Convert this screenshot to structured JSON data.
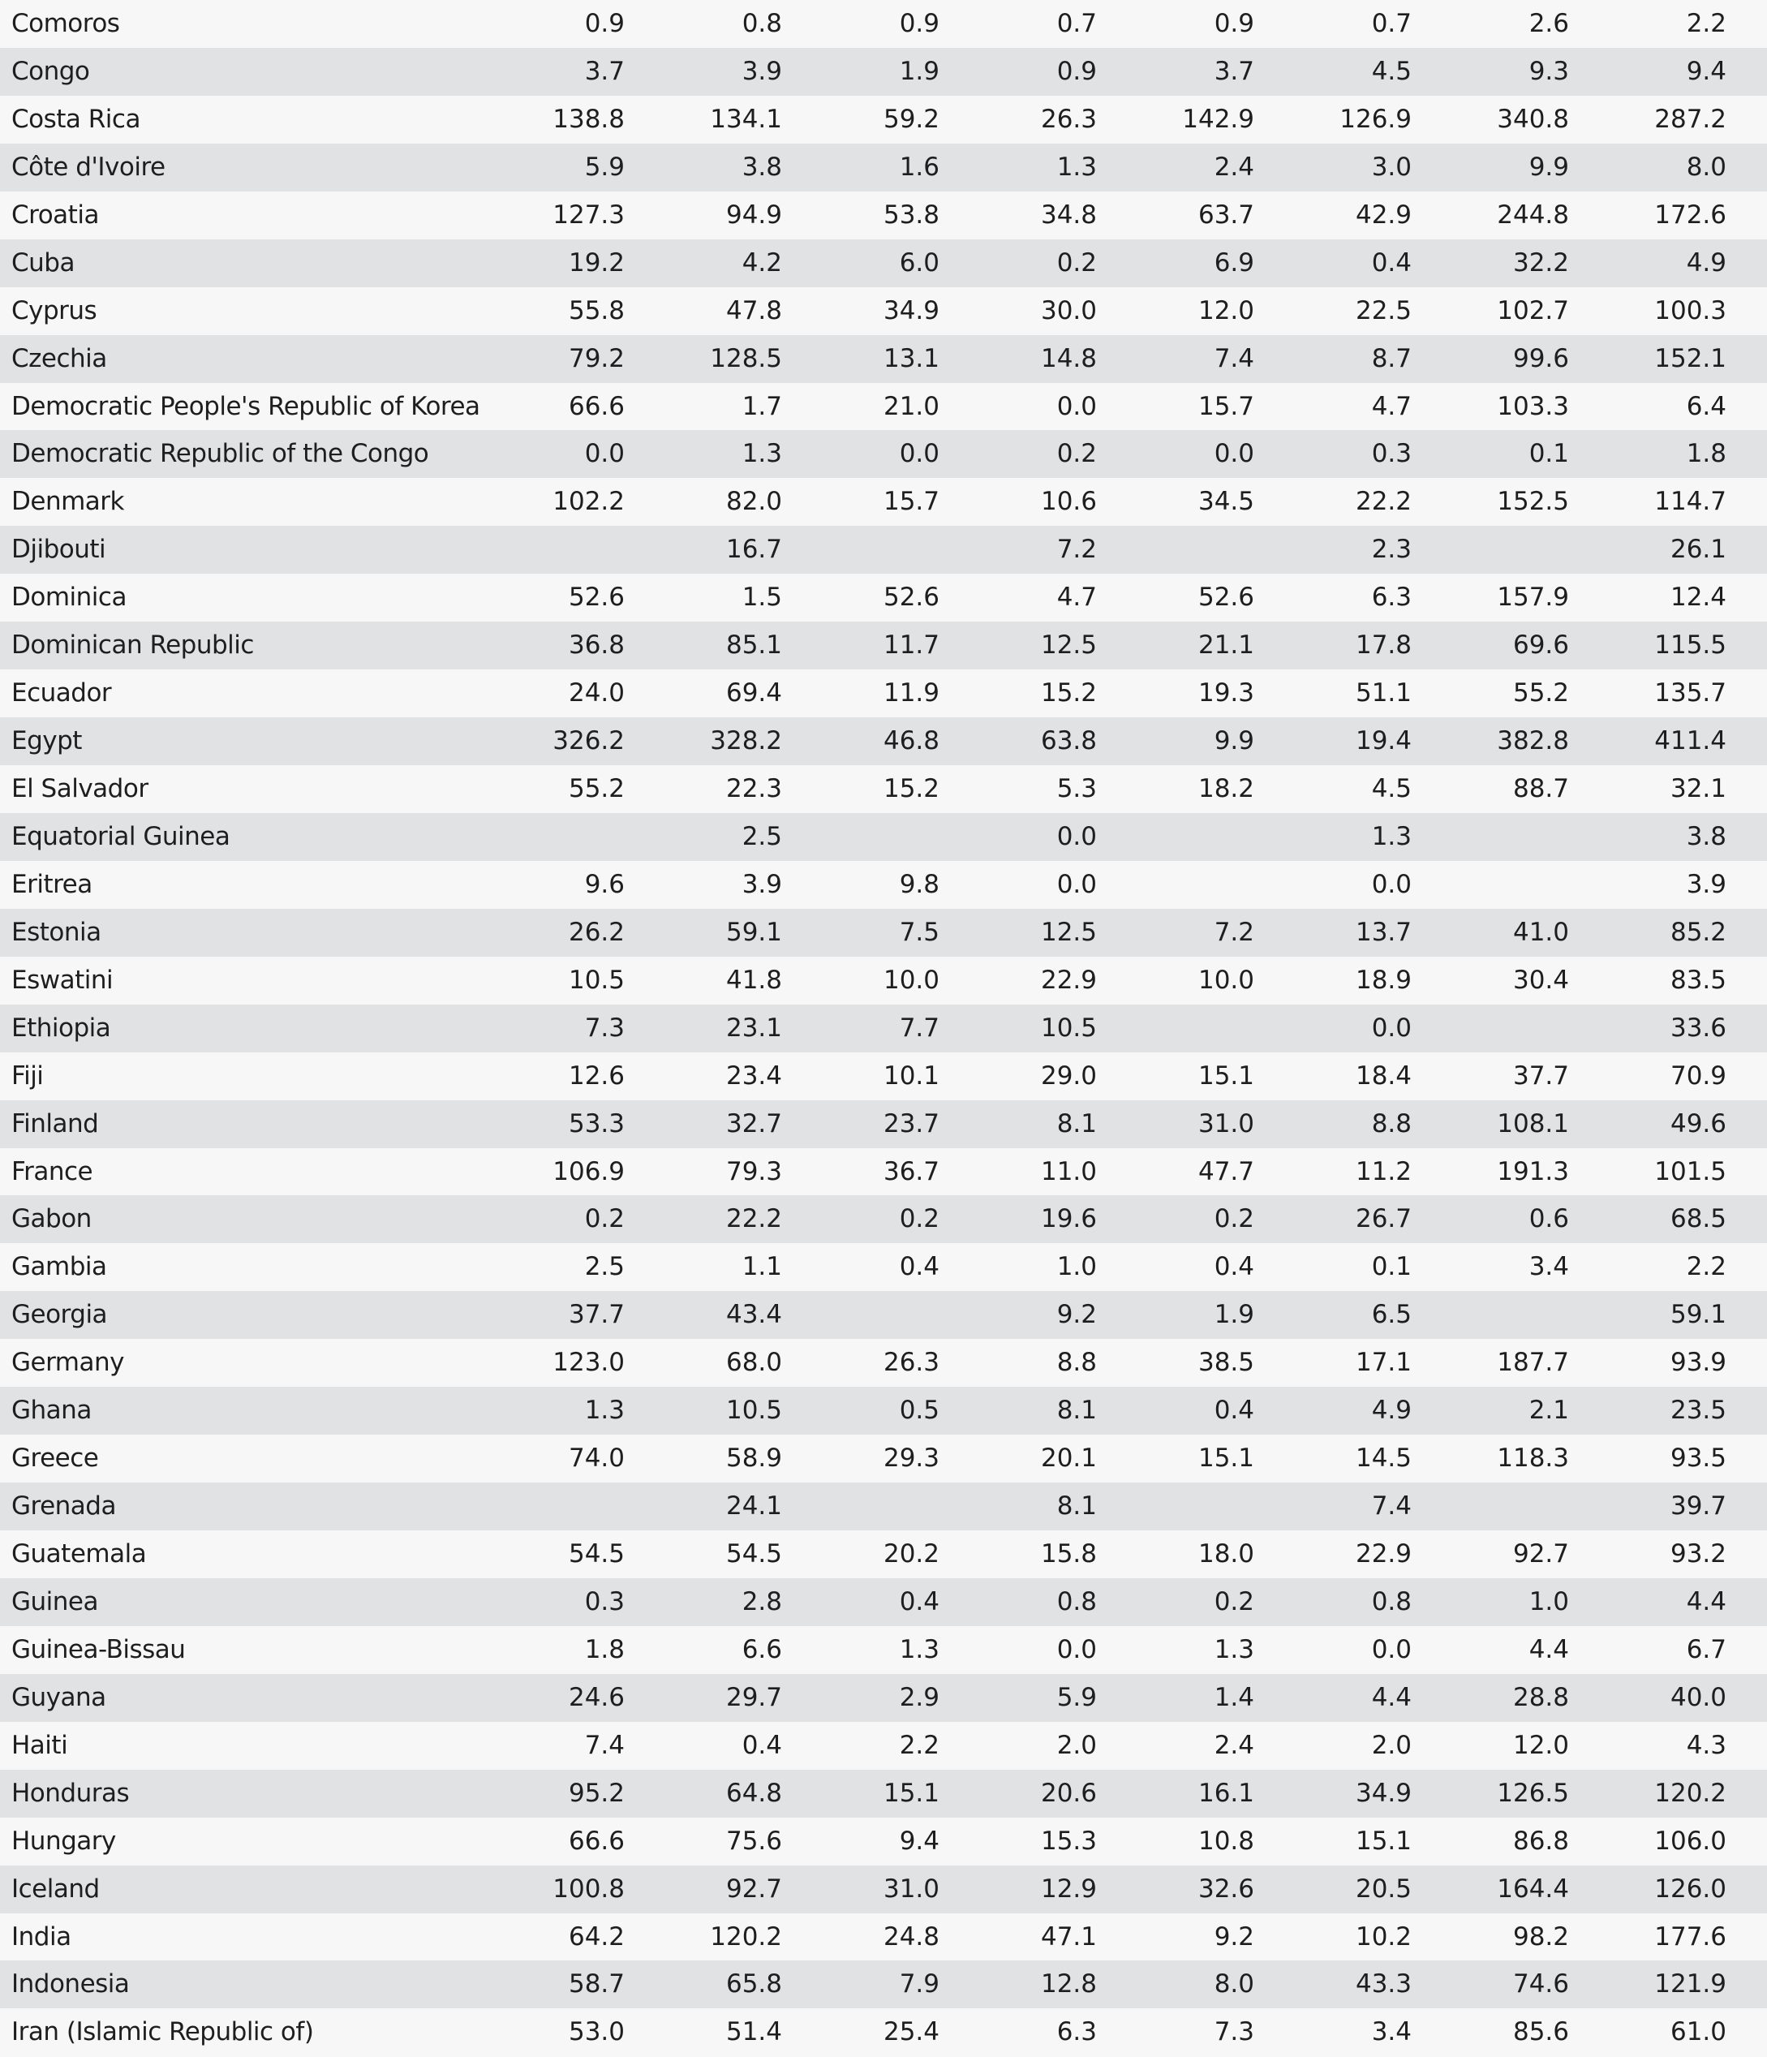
{
  "table": {
    "rows": [
      {
        "country": "Comoros",
        "values": [
          "0.9",
          "0.8",
          "0.9",
          "0.7",
          "0.9",
          "0.7",
          "2.6",
          "2.2"
        ]
      },
      {
        "country": "Congo",
        "values": [
          "3.7",
          "3.9",
          "1.9",
          "0.9",
          "3.7",
          "4.5",
          "9.3",
          "9.4"
        ]
      },
      {
        "country": "Costa Rica",
        "values": [
          "138.8",
          "134.1",
          "59.2",
          "26.3",
          "142.9",
          "126.9",
          "340.8",
          "287.2"
        ]
      },
      {
        "country": "Côte d'Ivoire",
        "values": [
          "5.9",
          "3.8",
          "1.6",
          "1.3",
          "2.4",
          "3.0",
          "9.9",
          "8.0"
        ]
      },
      {
        "country": "Croatia",
        "values": [
          "127.3",
          "94.9",
          "53.8",
          "34.8",
          "63.7",
          "42.9",
          "244.8",
          "172.6"
        ]
      },
      {
        "country": "Cuba",
        "values": [
          "19.2",
          "4.2",
          "6.0",
          "0.2",
          "6.9",
          "0.4",
          "32.2",
          "4.9"
        ]
      },
      {
        "country": "Cyprus",
        "values": [
          "55.8",
          "47.8",
          "34.9",
          "30.0",
          "12.0",
          "22.5",
          "102.7",
          "100.3"
        ]
      },
      {
        "country": "Czechia",
        "values": [
          "79.2",
          "128.5",
          "13.1",
          "14.8",
          "7.4",
          "8.7",
          "99.6",
          "152.1"
        ]
      },
      {
        "country": "Democratic People's Republic of Korea",
        "values": [
          "66.6",
          "1.7",
          "21.0",
          "0.0",
          "15.7",
          "4.7",
          "103.3",
          "6.4"
        ]
      },
      {
        "country": "Democratic Republic of the Congo",
        "values": [
          "0.0",
          "1.3",
          "0.0",
          "0.2",
          "0.0",
          "0.3",
          "0.1",
          "1.8"
        ]
      },
      {
        "country": "Denmark",
        "values": [
          "102.2",
          "82.0",
          "15.7",
          "10.6",
          "34.5",
          "22.2",
          "152.5",
          "114.7"
        ]
      },
      {
        "country": "Djibouti",
        "values": [
          "",
          "16.7",
          "",
          "7.2",
          "",
          "2.3",
          "",
          "26.1"
        ]
      },
      {
        "country": "Dominica",
        "values": [
          "52.6",
          "1.5",
          "52.6",
          "4.7",
          "52.6",
          "6.3",
          "157.9",
          "12.4"
        ]
      },
      {
        "country": "Dominican Republic",
        "values": [
          "36.8",
          "85.1",
          "11.7",
          "12.5",
          "21.1",
          "17.8",
          "69.6",
          "115.5"
        ]
      },
      {
        "country": "Ecuador",
        "values": [
          "24.0",
          "69.4",
          "11.9",
          "15.2",
          "19.3",
          "51.1",
          "55.2",
          "135.7"
        ]
      },
      {
        "country": "Egypt",
        "values": [
          "326.2",
          "328.2",
          "46.8",
          "63.8",
          "9.9",
          "19.4",
          "382.8",
          "411.4"
        ]
      },
      {
        "country": "El Salvador",
        "values": [
          "55.2",
          "22.3",
          "15.2",
          "5.3",
          "18.2",
          "4.5",
          "88.7",
          "32.1"
        ]
      },
      {
        "country": "Equatorial Guinea",
        "values": [
          "",
          "2.5",
          "",
          "0.0",
          "",
          "1.3",
          "",
          "3.8"
        ]
      },
      {
        "country": "Eritrea",
        "values": [
          "9.6",
          "3.9",
          "9.8",
          "0.0",
          "",
          "0.0",
          "",
          "3.9"
        ]
      },
      {
        "country": "Estonia",
        "values": [
          "26.2",
          "59.1",
          "7.5",
          "12.5",
          "7.2",
          "13.7",
          "41.0",
          "85.2"
        ]
      },
      {
        "country": "Eswatini",
        "values": [
          "10.5",
          "41.8",
          "10.0",
          "22.9",
          "10.0",
          "18.9",
          "30.4",
          "83.5"
        ]
      },
      {
        "country": "Ethiopia",
        "values": [
          "7.3",
          "23.1",
          "7.7",
          "10.5",
          "",
          "0.0",
          "",
          "33.6"
        ]
      },
      {
        "country": "Fiji",
        "values": [
          "12.6",
          "23.4",
          "10.1",
          "29.0",
          "15.1",
          "18.4",
          "37.7",
          "70.9"
        ]
      },
      {
        "country": "Finland",
        "values": [
          "53.3",
          "32.7",
          "23.7",
          "8.1",
          "31.0",
          "8.8",
          "108.1",
          "49.6"
        ]
      },
      {
        "country": "France",
        "values": [
          "106.9",
          "79.3",
          "36.7",
          "11.0",
          "47.7",
          "11.2",
          "191.3",
          "101.5"
        ]
      },
      {
        "country": "Gabon",
        "values": [
          "0.2",
          "22.2",
          "0.2",
          "19.6",
          "0.2",
          "26.7",
          "0.6",
          "68.5"
        ]
      },
      {
        "country": "Gambia",
        "values": [
          "2.5",
          "1.1",
          "0.4",
          "1.0",
          "0.4",
          "0.1",
          "3.4",
          "2.2"
        ]
      },
      {
        "country": "Georgia",
        "values": [
          "37.7",
          "43.4",
          "",
          "9.2",
          "1.9",
          "6.5",
          "",
          "59.1"
        ]
      },
      {
        "country": "Germany",
        "values": [
          "123.0",
          "68.0",
          "26.3",
          "8.8",
          "38.5",
          "17.1",
          "187.7",
          "93.9"
        ]
      },
      {
        "country": "Ghana",
        "values": [
          "1.3",
          "10.5",
          "0.5",
          "8.1",
          "0.4",
          "4.9",
          "2.1",
          "23.5"
        ]
      },
      {
        "country": "Greece",
        "values": [
          "74.0",
          "58.9",
          "29.3",
          "20.1",
          "15.1",
          "14.5",
          "118.3",
          "93.5"
        ]
      },
      {
        "country": "Grenada",
        "values": [
          "",
          "24.1",
          "",
          "8.1",
          "",
          "7.4",
          "",
          "39.7"
        ]
      },
      {
        "country": "Guatemala",
        "values": [
          "54.5",
          "54.5",
          "20.2",
          "15.8",
          "18.0",
          "22.9",
          "92.7",
          "93.2"
        ]
      },
      {
        "country": "Guinea",
        "values": [
          "0.3",
          "2.8",
          "0.4",
          "0.8",
          "0.2",
          "0.8",
          "1.0",
          "4.4"
        ]
      },
      {
        "country": "Guinea-Bissau",
        "values": [
          "1.8",
          "6.6",
          "1.3",
          "0.0",
          "1.3",
          "0.0",
          "4.4",
          "6.7"
        ]
      },
      {
        "country": "Guyana",
        "values": [
          "24.6",
          "29.7",
          "2.9",
          "5.9",
          "1.4",
          "4.4",
          "28.8",
          "40.0"
        ]
      },
      {
        "country": "Haiti",
        "values": [
          "7.4",
          "0.4",
          "2.2",
          "2.0",
          "2.4",
          "2.0",
          "12.0",
          "4.3"
        ]
      },
      {
        "country": "Honduras",
        "values": [
          "95.2",
          "64.8",
          "15.1",
          "20.6",
          "16.1",
          "34.9",
          "126.5",
          "120.2"
        ]
      },
      {
        "country": "Hungary",
        "values": [
          "66.6",
          "75.6",
          "9.4",
          "15.3",
          "10.8",
          "15.1",
          "86.8",
          "106.0"
        ]
      },
      {
        "country": "Iceland",
        "values": [
          "100.8",
          "92.7",
          "31.0",
          "12.9",
          "32.6",
          "20.5",
          "164.4",
          "126.0"
        ]
      },
      {
        "country": "India",
        "values": [
          "64.2",
          "120.2",
          "24.8",
          "47.1",
          "9.2",
          "10.2",
          "98.2",
          "177.6"
        ]
      },
      {
        "country": "Indonesia",
        "values": [
          "58.7",
          "65.8",
          "7.9",
          "12.8",
          "8.0",
          "43.3",
          "74.6",
          "121.9"
        ]
      },
      {
        "country": "Iran (Islamic Republic of)",
        "values": [
          "53.0",
          "51.4",
          "25.4",
          "6.3",
          "7.3",
          "3.4",
          "85.6",
          "61.0"
        ]
      }
    ]
  }
}
